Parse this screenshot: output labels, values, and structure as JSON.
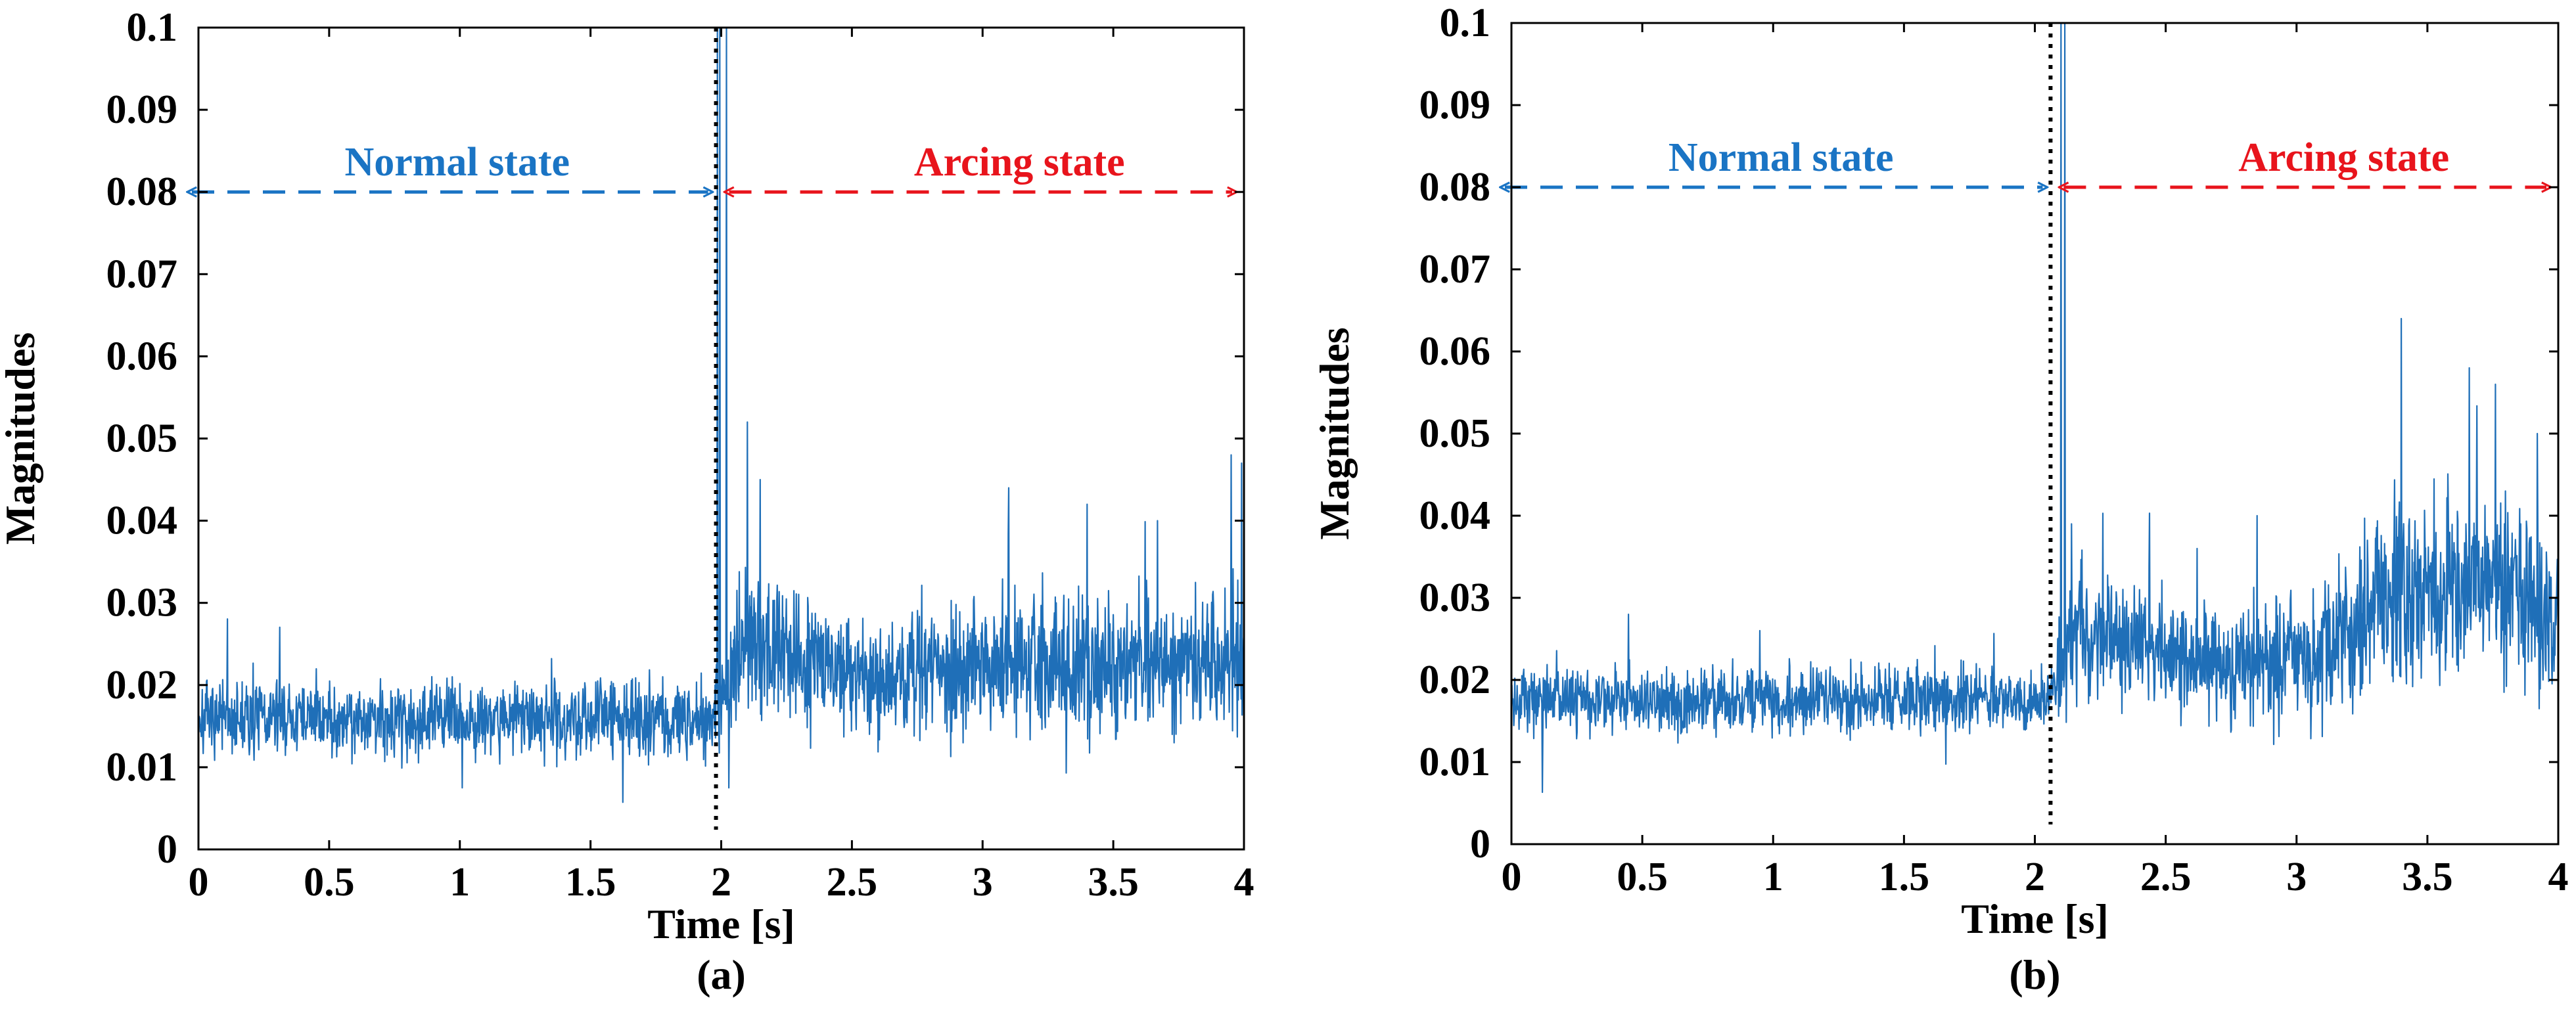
{
  "colors": {
    "signal": "#1f6fb8",
    "normal": "#1a74c4",
    "arcing": "#e8141c",
    "axis": "#000000"
  },
  "chart_data": [
    {
      "id": "a",
      "type": "line",
      "sublabel": "(a)",
      "xlabel": "Time [s]",
      "ylabel": "Magnitudes",
      "xlim": [
        0,
        4
      ],
      "ylim": [
        0,
        0.1
      ],
      "xticks": [
        0,
        0.5,
        1,
        1.5,
        2,
        2.5,
        3,
        3.5,
        4
      ],
      "xtick_labels": [
        "0",
        "0.5",
        "1",
        "1.5",
        "2",
        "2.5",
        "3",
        "3.5",
        "4"
      ],
      "yticks": [
        0,
        0.01,
        0.02,
        0.03,
        0.04,
        0.05,
        0.06,
        0.07,
        0.08,
        0.09,
        0.1
      ],
      "ytick_labels": [
        "0",
        "0.01",
        "0.02",
        "0.03",
        "0.04",
        "0.05",
        "0.06",
        "0.07",
        "0.08",
        "0.09",
        "0.1"
      ],
      "transition_time": 1.98,
      "normal_label": "Normal state",
      "arcing_label": "Arcing state",
      "arrow_level": 0.08,
      "signal": {
        "breakpoints": [
          {
            "t": 0.0,
            "mean": 0.016,
            "noise": 0.0028
          },
          {
            "t": 1.97,
            "mean": 0.016,
            "noise": 0.0028
          },
          {
            "t": 2.08,
            "mean": 0.026,
            "noise": 0.006
          },
          {
            "t": 2.5,
            "mean": 0.021,
            "noise": 0.0045
          },
          {
            "t": 3.0,
            "mean": 0.022,
            "noise": 0.005
          },
          {
            "t": 3.5,
            "mean": 0.023,
            "noise": 0.0055
          },
          {
            "t": 4.0,
            "mean": 0.023,
            "noise": 0.0055
          }
        ],
        "spikes": [
          {
            "t": 1.985,
            "v": 0.1
          },
          {
            "t": 1.995,
            "v": 0.1
          },
          {
            "t": 2.02,
            "v": 0.1
          },
          {
            "t": 2.03,
            "v": 0.0075
          },
          {
            "t": 2.1,
            "v": 0.052
          },
          {
            "t": 2.15,
            "v": 0.045
          },
          {
            "t": 3.1,
            "v": 0.044
          },
          {
            "t": 3.4,
            "v": 0.042
          },
          {
            "t": 3.67,
            "v": 0.04
          },
          {
            "t": 3.95,
            "v": 0.048
          },
          {
            "t": 3.99,
            "v": 0.047
          },
          {
            "t": 1.01,
            "v": 0.0075
          }
        ]
      }
    },
    {
      "id": "b",
      "type": "line",
      "sublabel": "(b)",
      "xlabel": "Time [s]",
      "ylabel": "Magnitudes",
      "xlim": [
        0,
        4
      ],
      "ylim": [
        0,
        0.1
      ],
      "xticks": [
        0,
        0.5,
        1,
        1.5,
        2,
        2.5,
        3,
        3.5,
        4
      ],
      "xtick_labels": [
        "0",
        "0.5",
        "1",
        "1.5",
        "2",
        "2.5",
        "3",
        "3.5",
        "4"
      ],
      "yticks": [
        0,
        0.01,
        0.02,
        0.03,
        0.04,
        0.05,
        0.06,
        0.07,
        0.08,
        0.09,
        0.1
      ],
      "ytick_labels": [
        "0",
        "0.01",
        "0.02",
        "0.03",
        "0.04",
        "0.05",
        "0.06",
        "0.07",
        "0.08",
        "0.09",
        "0.1"
      ],
      "transition_time": 2.06,
      "normal_label": "Normal state",
      "arcing_label": "Arcing state",
      "arrow_level": 0.08,
      "signal": {
        "breakpoints": [
          {
            "t": 0.0,
            "mean": 0.0175,
            "noise": 0.0025
          },
          {
            "t": 2.05,
            "mean": 0.0175,
            "noise": 0.0025
          },
          {
            "t": 2.15,
            "mean": 0.027,
            "noise": 0.005
          },
          {
            "t": 2.6,
            "mean": 0.022,
            "noise": 0.004
          },
          {
            "t": 3.1,
            "mean": 0.023,
            "noise": 0.005
          },
          {
            "t": 3.4,
            "mean": 0.031,
            "noise": 0.007
          },
          {
            "t": 3.8,
            "mean": 0.031,
            "noise": 0.007
          },
          {
            "t": 4.0,
            "mean": 0.027,
            "noise": 0.006
          }
        ],
        "spikes": [
          {
            "t": 2.1,
            "v": 0.1
          },
          {
            "t": 2.115,
            "v": 0.1
          },
          {
            "t": 2.14,
            "v": 0.039
          },
          {
            "t": 2.85,
            "v": 0.04
          },
          {
            "t": 3.4,
            "v": 0.064
          },
          {
            "t": 3.66,
            "v": 0.058
          },
          {
            "t": 3.76,
            "v": 0.056
          },
          {
            "t": 3.92,
            "v": 0.05
          },
          {
            "t": 0.95,
            "v": 0.026
          },
          {
            "t": 2.62,
            "v": 0.036
          }
        ]
      }
    }
  ]
}
